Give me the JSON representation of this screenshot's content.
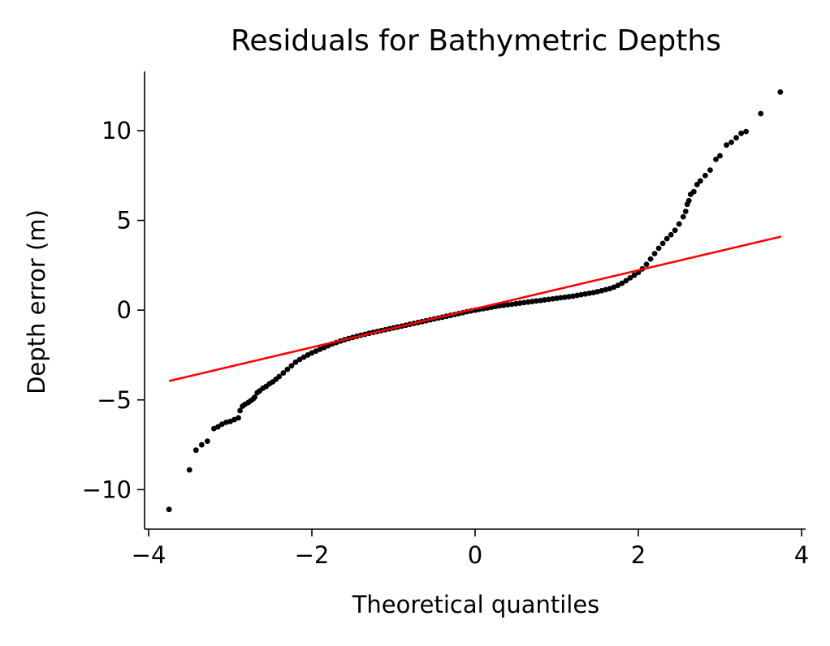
{
  "chart_data": {
    "type": "scatter",
    "title": "Residuals for Bathymetric Depths",
    "xlabel": "Theoretical quantiles",
    "ylabel": "Depth error (m)",
    "xlim": [
      -4.05,
      4.05
    ],
    "ylim": [
      -12.2,
      13.3
    ],
    "xticks": [
      -4,
      -2,
      0,
      2,
      4
    ],
    "xtick_labels": [
      "−4",
      "−2",
      "0",
      "2",
      "4"
    ],
    "yticks": [
      -10,
      -5,
      0,
      5,
      10
    ],
    "ytick_labels": [
      "−10",
      "−5",
      "0",
      "5",
      "10"
    ],
    "grid": false,
    "reference_line": {
      "x": [
        -3.75,
        3.75
      ],
      "y": [
        -3.95,
        4.1
      ],
      "color": "#ff0000"
    },
    "marker_color": "#000000",
    "points": [
      [
        -3.75,
        -11.1
      ],
      [
        -3.5,
        -8.9
      ],
      [
        -3.42,
        -7.8
      ],
      [
        -3.35,
        -7.5
      ],
      [
        -3.28,
        -7.3
      ],
      [
        -3.2,
        -6.6
      ],
      [
        -3.15,
        -6.5
      ],
      [
        -3.1,
        -6.35
      ],
      [
        -3.05,
        -6.25
      ],
      [
        -3.0,
        -6.2
      ],
      [
        -2.95,
        -6.1
      ],
      [
        -2.9,
        -6.0
      ],
      [
        -2.88,
        -5.6
      ],
      [
        -2.85,
        -5.35
      ],
      [
        -2.82,
        -5.25
      ],
      [
        -2.78,
        -5.15
      ],
      [
        -2.75,
        -5.05
      ],
      [
        -2.72,
        -4.95
      ],
      [
        -2.7,
        -4.85
      ],
      [
        -2.67,
        -4.6
      ],
      [
        -2.64,
        -4.5
      ],
      [
        -2.6,
        -4.35
      ],
      [
        -2.56,
        -4.25
      ],
      [
        -2.52,
        -4.1
      ],
      [
        -2.48,
        -4.0
      ],
      [
        -2.44,
        -3.85
      ],
      [
        -2.4,
        -3.7
      ],
      [
        -2.35,
        -3.5
      ],
      [
        -2.3,
        -3.3
      ],
      [
        -2.25,
        -3.1
      ],
      [
        -2.2,
        -2.9
      ],
      [
        -2.15,
        -2.75
      ],
      [
        -2.1,
        -2.62
      ],
      [
        -2.05,
        -2.5
      ],
      [
        -2.0,
        -2.38
      ],
      [
        -1.95,
        -2.28
      ],
      [
        -1.9,
        -2.18
      ],
      [
        -1.85,
        -2.08
      ],
      [
        -1.8,
        -1.98
      ],
      [
        -1.75,
        -1.88
      ],
      [
        -1.7,
        -1.8
      ],
      [
        -1.65,
        -1.72
      ],
      [
        -1.6,
        -1.65
      ],
      [
        -1.55,
        -1.58
      ],
      [
        -1.5,
        -1.52
      ],
      [
        -1.45,
        -1.46
      ],
      [
        -1.4,
        -1.4
      ],
      [
        -1.35,
        -1.35
      ],
      [
        -1.3,
        -1.29
      ],
      [
        -1.25,
        -1.24
      ],
      [
        -1.2,
        -1.19
      ],
      [
        -1.15,
        -1.14
      ],
      [
        -1.1,
        -1.09
      ],
      [
        -1.05,
        -1.04
      ],
      [
        -1.0,
        -0.99
      ],
      [
        -0.95,
        -0.94
      ],
      [
        -0.9,
        -0.89
      ],
      [
        -0.85,
        -0.84
      ],
      [
        -0.8,
        -0.79
      ],
      [
        -0.75,
        -0.74
      ],
      [
        -0.7,
        -0.69
      ],
      [
        -0.65,
        -0.64
      ],
      [
        -0.6,
        -0.59
      ],
      [
        -0.55,
        -0.54
      ],
      [
        -0.5,
        -0.49
      ],
      [
        -0.45,
        -0.44
      ],
      [
        -0.4,
        -0.39
      ],
      [
        -0.35,
        -0.34
      ],
      [
        -0.3,
        -0.29
      ],
      [
        -0.25,
        -0.24
      ],
      [
        -0.2,
        -0.19
      ],
      [
        -0.15,
        -0.14
      ],
      [
        -0.1,
        -0.09
      ],
      [
        -0.05,
        -0.04
      ],
      [
        0.0,
        0.0
      ],
      [
        0.05,
        0.04
      ],
      [
        0.1,
        0.08
      ],
      [
        0.15,
        0.12
      ],
      [
        0.2,
        0.16
      ],
      [
        0.25,
        0.2
      ],
      [
        0.3,
        0.24
      ],
      [
        0.35,
        0.27
      ],
      [
        0.4,
        0.3
      ],
      [
        0.45,
        0.33
      ],
      [
        0.5,
        0.36
      ],
      [
        0.55,
        0.39
      ],
      [
        0.6,
        0.42
      ],
      [
        0.65,
        0.45
      ],
      [
        0.7,
        0.48
      ],
      [
        0.75,
        0.51
      ],
      [
        0.8,
        0.54
      ],
      [
        0.85,
        0.57
      ],
      [
        0.9,
        0.6
      ],
      [
        0.95,
        0.63
      ],
      [
        1.0,
        0.66
      ],
      [
        1.05,
        0.69
      ],
      [
        1.1,
        0.72
      ],
      [
        1.15,
        0.75
      ],
      [
        1.2,
        0.78
      ],
      [
        1.25,
        0.82
      ],
      [
        1.3,
        0.86
      ],
      [
        1.35,
        0.9
      ],
      [
        1.4,
        0.94
      ],
      [
        1.45,
        0.98
      ],
      [
        1.5,
        1.03
      ],
      [
        1.55,
        1.08
      ],
      [
        1.6,
        1.14
      ],
      [
        1.65,
        1.2
      ],
      [
        1.7,
        1.28
      ],
      [
        1.75,
        1.38
      ],
      [
        1.8,
        1.5
      ],
      [
        1.85,
        1.64
      ],
      [
        1.9,
        1.8
      ],
      [
        1.95,
        1.95
      ],
      [
        2.0,
        2.1
      ],
      [
        2.05,
        2.3
      ],
      [
        2.1,
        2.55
      ],
      [
        2.15,
        2.85
      ],
      [
        2.2,
        3.15
      ],
      [
        2.25,
        3.45
      ],
      [
        2.3,
        3.72
      ],
      [
        2.35,
        3.98
      ],
      [
        2.4,
        4.2
      ],
      [
        2.45,
        4.45
      ],
      [
        2.5,
        4.8
      ],
      [
        2.55,
        5.2
      ],
      [
        2.58,
        5.5
      ],
      [
        2.6,
        5.9
      ],
      [
        2.62,
        6.1
      ],
      [
        2.64,
        6.45
      ],
      [
        2.68,
        6.6
      ],
      [
        2.72,
        7.0
      ],
      [
        2.76,
        7.2
      ],
      [
        2.82,
        7.5
      ],
      [
        2.88,
        7.8
      ],
      [
        2.95,
        8.4
      ],
      [
        3.0,
        8.6
      ],
      [
        3.08,
        9.2
      ],
      [
        3.14,
        9.35
      ],
      [
        3.2,
        9.6
      ],
      [
        3.26,
        9.85
      ],
      [
        3.32,
        9.95
      ],
      [
        3.5,
        10.95
      ],
      [
        3.74,
        12.15
      ]
    ]
  }
}
